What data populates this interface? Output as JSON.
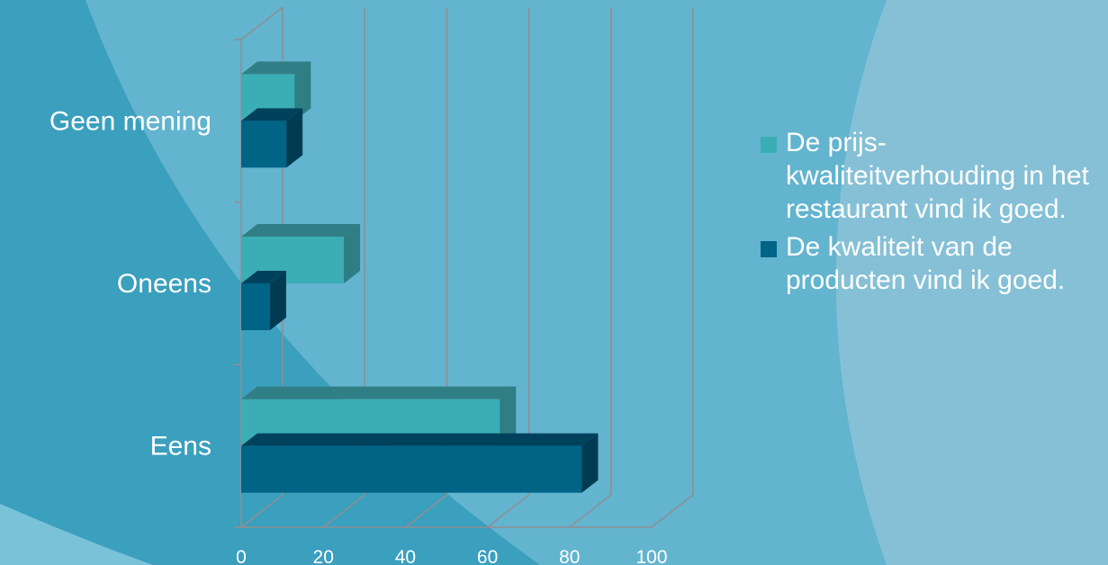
{
  "chart_data": {
    "type": "bar",
    "orientation": "horizontal",
    "style": "3d",
    "categories": [
      "Geen mening",
      "Oneens",
      "Eens"
    ],
    "series": [
      {
        "name": "De prijs-kwaliteitverhouding in het restaurant vind ik goed.",
        "color": "#3badb5",
        "side_color": "#2e7e84",
        "top_color": "#317f86",
        "values": [
          13,
          25,
          63
        ]
      },
      {
        "name": "De kwaliteit van de producten vind ik goed.",
        "color": "#006487",
        "side_color": "#003b52",
        "top_color": "#00425c",
        "values": [
          11,
          7,
          83
        ]
      }
    ],
    "x_ticks": [
      "0",
      "20",
      "40",
      "60",
      "80",
      "100"
    ],
    "xlim": [
      0,
      100
    ],
    "grid": true,
    "legend_position": "right",
    "title": "",
    "xlabel": "",
    "ylabel": ""
  }
}
